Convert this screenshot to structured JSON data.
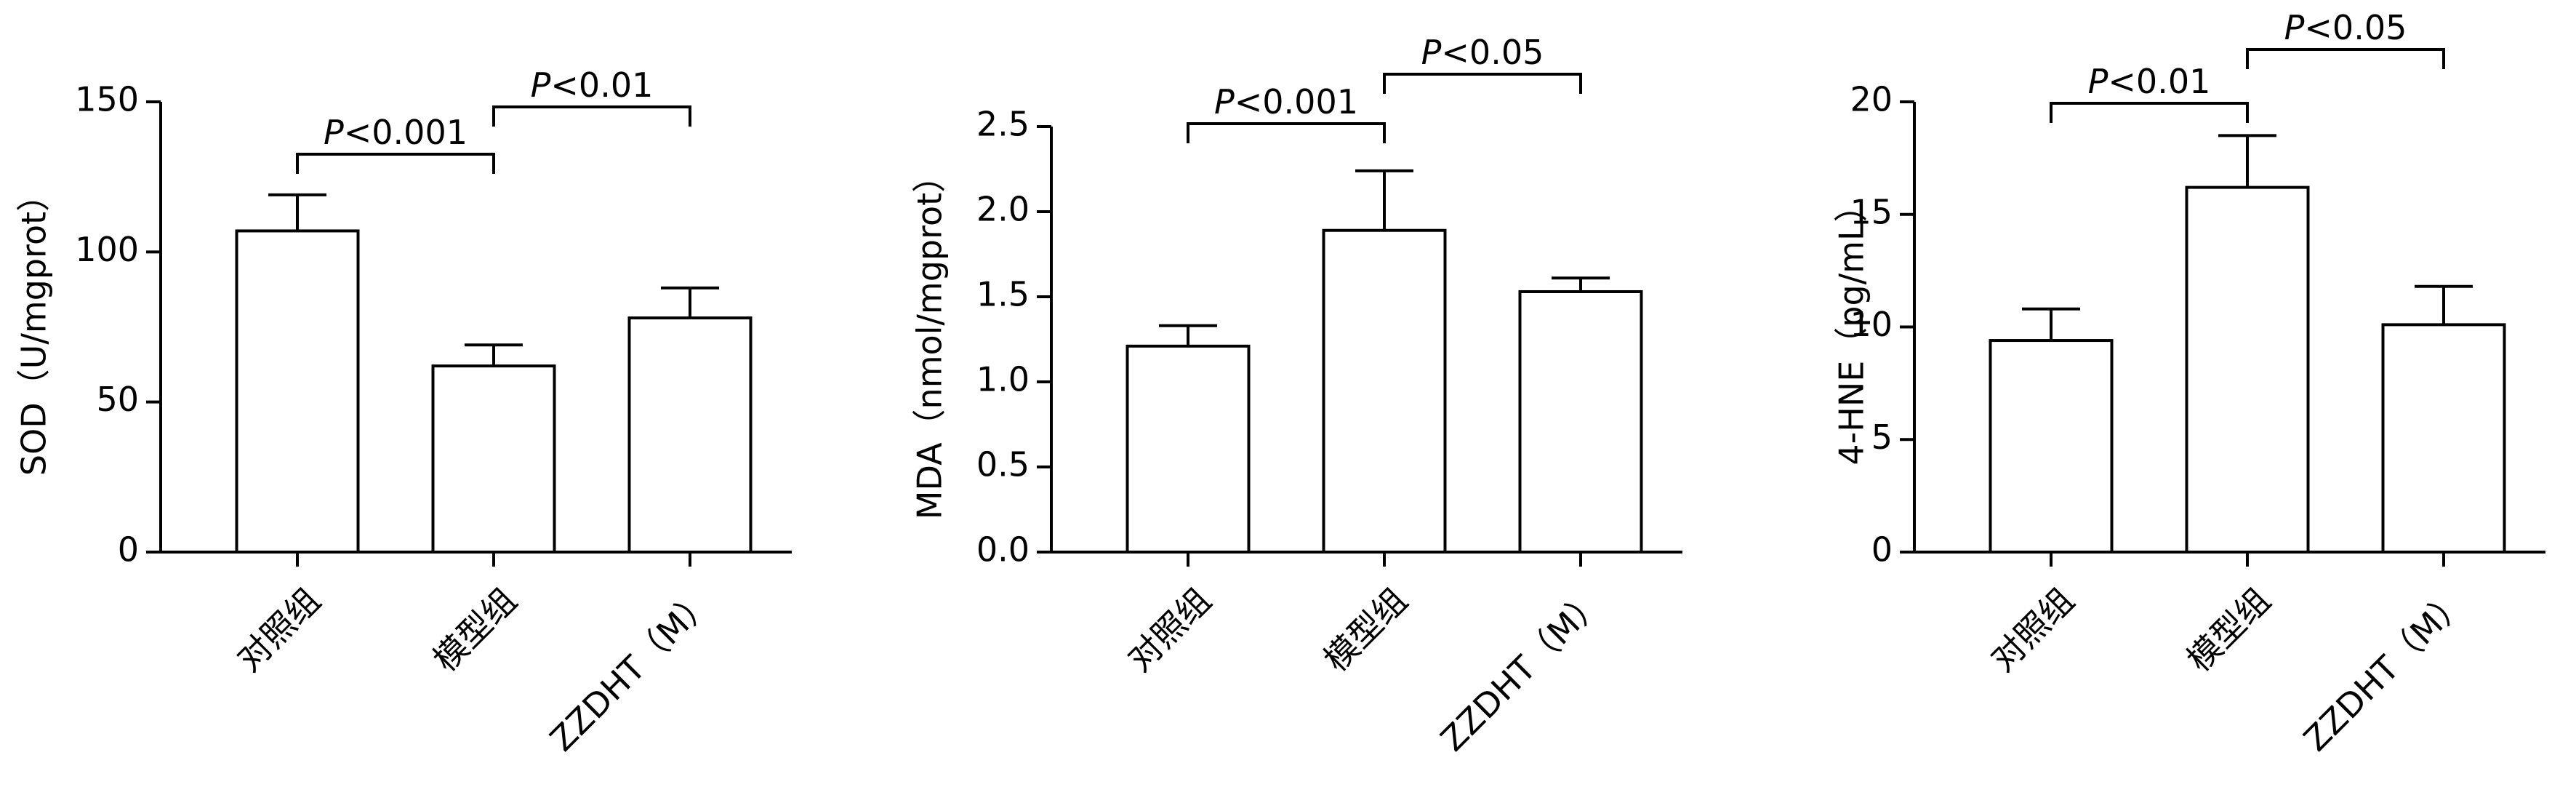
{
  "chart_data": [
    {
      "type": "bar",
      "y_label": "SOD（U/mgprot）",
      "categories": [
        "对照组",
        "模型组",
        "ZZDHT（M）"
      ],
      "values": [
        107,
        62,
        78
      ],
      "errors": [
        12,
        7,
        10
      ],
      "ylim": [
        0,
        150
      ],
      "yticks": [
        0,
        50,
        100,
        150
      ],
      "annotations": [
        "P<0.001",
        "P<0.01"
      ],
      "color": "#ffffff"
    },
    {
      "type": "bar",
      "y_label": "MDA（nmol/mgprot）",
      "categories": [
        "对照组",
        "模型组",
        "ZZDHT（M）"
      ],
      "values": [
        1.21,
        1.89,
        1.53
      ],
      "errors": [
        0.12,
        0.35,
        0.08
      ],
      "ylim": [
        0,
        2.5
      ],
      "yticks": [
        {
          "value": 0,
          "label": "0.0"
        },
        0.5,
        {
          "value": 1,
          "label": "1.0"
        },
        1.5,
        {
          "value": 2,
          "label": "2.0"
        },
        2.5
      ],
      "annotations": [
        "P<0.001",
        "P<0.05"
      ],
      "color": "#ffffff"
    },
    {
      "type": "bar",
      "y_label": "4-HNE（pg/mL）",
      "categories": [
        "对照组",
        "模型组",
        "ZZDHT（M）"
      ],
      "values": [
        9.4,
        16.2,
        10.1
      ],
      "errors": [
        1.4,
        2.3,
        1.7
      ],
      "ylim": [
        0,
        20
      ],
      "yticks": [
        0,
        5,
        10,
        15,
        20
      ],
      "annotations": [
        "P<0.01",
        "P<0.05"
      ],
      "color": "#ffffff"
    }
  ]
}
